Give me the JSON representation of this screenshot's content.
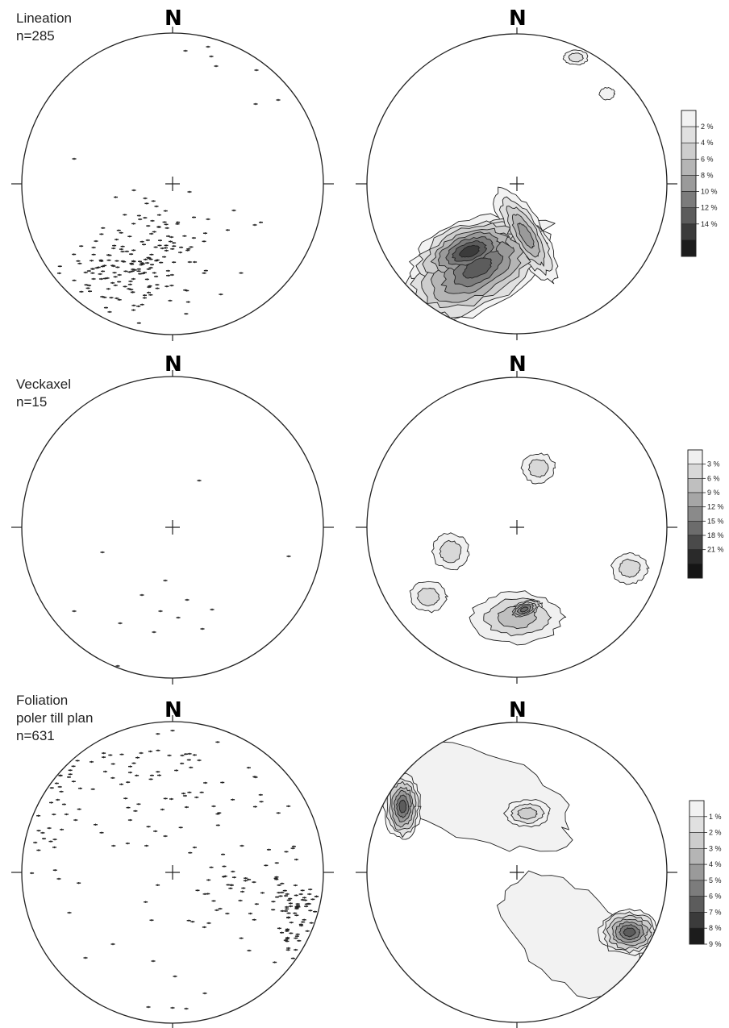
{
  "plots": [
    {
      "id": "lineation",
      "title_lines": [
        "Lineation",
        "n=285"
      ],
      "north": "N",
      "legend": {
        "labels": [
          "2 %",
          "4 %",
          "6 %",
          "8 %",
          "10 %",
          "12 %",
          "14 %"
        ],
        "colors": [
          "#f2f2f2",
          "#e0e0e0",
          "#cdcdcd",
          "#b5b5b5",
          "#9a9a9a",
          "#7c7c7c",
          "#5c5c5c",
          "#3b3b3b",
          "#1c1c1c"
        ]
      },
      "density_blobs": [
        {
          "az": 205,
          "r": 0.62,
          "sx": 0.55,
          "sy": 0.28,
          "rot": -30,
          "level": 7
        },
        {
          "az": 215,
          "r": 0.55,
          "sx": 0.4,
          "sy": 0.2,
          "rot": -20,
          "level": 8
        },
        {
          "az": 170,
          "r": 0.35,
          "sx": 0.35,
          "sy": 0.12,
          "rot": 60,
          "level": 5
        },
        {
          "az": 25,
          "r": 0.93,
          "sx": 0.08,
          "sy": 0.05,
          "rot": 0,
          "level": 2
        },
        {
          "az": 45,
          "r": 0.85,
          "sx": 0.05,
          "sy": 0.04,
          "rot": 0,
          "level": 1
        }
      ]
    },
    {
      "id": "veckaxel",
      "title_lines": [
        "Veckaxel",
        "n=15"
      ],
      "north": "N",
      "legend": {
        "labels": [
          "3 %",
          "6 %",
          "9 %",
          "12 %",
          "15 %",
          "18 %",
          "21 %"
        ],
        "colors": [
          "#f0f0f0",
          "#d8d8d8",
          "#bfbfbf",
          "#a6a6a6",
          "#8a8a8a",
          "#6c6c6c",
          "#4a4a4a",
          "#2a2a2a",
          "#151515"
        ]
      },
      "density_blobs": [
        {
          "az": 20,
          "r": 0.42,
          "sx": 0.11,
          "sy": 0.1,
          "rot": 0,
          "level": 2
        },
        {
          "az": 250,
          "r": 0.47,
          "sx": 0.12,
          "sy": 0.12,
          "rot": 0,
          "level": 2
        },
        {
          "az": 110,
          "r": 0.8,
          "sx": 0.12,
          "sy": 0.1,
          "rot": 0,
          "level": 2
        },
        {
          "az": 232,
          "r": 0.75,
          "sx": 0.12,
          "sy": 0.1,
          "rot": 0,
          "level": 2
        },
        {
          "az": 180,
          "r": 0.6,
          "sx": 0.3,
          "sy": 0.17,
          "rot": 0,
          "level": 3
        },
        {
          "az": 175,
          "r": 0.55,
          "sx": 0.12,
          "sy": 0.06,
          "rot": -20,
          "level": 6
        }
      ]
    },
    {
      "id": "foliation",
      "title_lines": [
        "Foliation",
        "poler till plan",
        "n=631"
      ],
      "north": "N",
      "legend": {
        "labels": [
          "1 %",
          "2 %",
          "3 %",
          "4 %",
          "5 %",
          "6 %",
          "7 %",
          "8 %",
          "9 %"
        ],
        "colors": [
          "#f2f2f2",
          "#e0e0e0",
          "#cdcdcd",
          "#b5b5b5",
          "#9a9a9a",
          "#7c7c7c",
          "#5c5c5c",
          "#3b3b3b",
          "#1c1c1c"
        ]
      },
      "density_blobs": [
        {
          "az": 330,
          "r": 0.6,
          "sx": 0.7,
          "sy": 0.3,
          "rot": 20,
          "level": 1
        },
        {
          "az": 140,
          "r": 0.55,
          "sx": 0.55,
          "sy": 0.3,
          "rot": 40,
          "level": 1
        },
        {
          "az": 300,
          "r": 0.88,
          "sx": 0.12,
          "sy": 0.22,
          "rot": 0,
          "level": 7
        },
        {
          "az": 118,
          "r": 0.85,
          "sx": 0.2,
          "sy": 0.15,
          "rot": 0,
          "level": 7
        },
        {
          "az": 10,
          "r": 0.4,
          "sx": 0.15,
          "sy": 0.09,
          "rot": 0,
          "level": 3
        }
      ]
    }
  ]
}
